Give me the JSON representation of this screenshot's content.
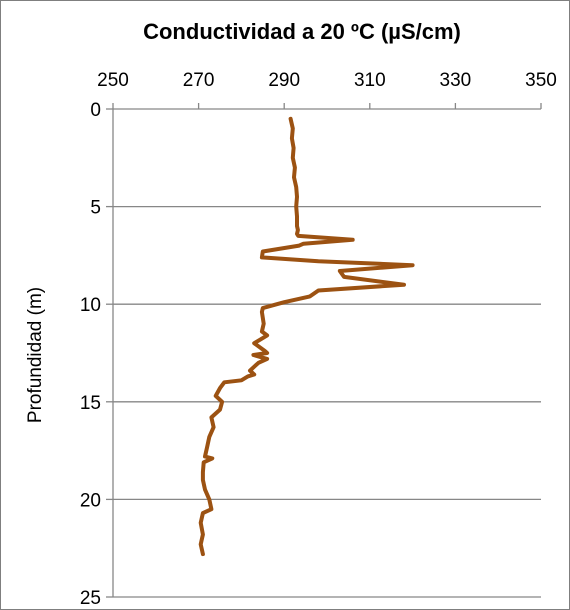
{
  "chart_data": {
    "type": "line",
    "title": "Conductividad  a  20 ºC (µS/cm)",
    "xlabel": "",
    "ylabel": "Profundidad (m)",
    "xlim": [
      250,
      350
    ],
    "ylim": [
      0,
      25
    ],
    "y_inverted": true,
    "x_axis_position": "top",
    "x_ticks": [
      "250",
      "270",
      "290",
      "310",
      "330",
      "350"
    ],
    "y_ticks": [
      "0",
      "5",
      "10",
      "15",
      "20",
      "25"
    ],
    "grid": "horizontal",
    "legend": "none",
    "series": [
      {
        "color": "#9c5212",
        "x": [
          291.5,
          292,
          291.8,
          292.2,
          292,
          292.5,
          292.3,
          292.8,
          293,
          292.8,
          293,
          293,
          293.2,
          293,
          293.3,
          306,
          294.5,
          293.5,
          285,
          284.8,
          298,
          320,
          303,
          304,
          318,
          298,
          296,
          290,
          285,
          284.8,
          285.2,
          284.8,
          286,
          284.5,
          283,
          285.5,
          286,
          282.8,
          286,
          284,
          283,
          282,
          283,
          281.5,
          280,
          276,
          275,
          274,
          275.5,
          275,
          273,
          273.5,
          272.5,
          272,
          271.5,
          273.2,
          271.2,
          271,
          271,
          271.5,
          272.5,
          273,
          271,
          270.5,
          271,
          270.5,
          271
        ],
        "y": [
          0.5,
          1.0,
          1.5,
          2.0,
          2.5,
          3.0,
          3.5,
          4.0,
          4.5,
          5.0,
          5.5,
          6.0,
          6.2,
          6.4,
          6.5,
          6.7,
          6.9,
          7.0,
          7.3,
          7.6,
          7.8,
          8.0,
          8.3,
          8.6,
          9.0,
          9.3,
          9.6,
          9.9,
          10.2,
          10.4,
          11.0,
          11.4,
          11.6,
          11.8,
          12.0,
          12.4,
          12.5,
          12.6,
          12.8,
          13.0,
          13.2,
          13.4,
          13.6,
          13.7,
          13.9,
          14.0,
          14.3,
          14.7,
          15.0,
          15.4,
          15.8,
          16.3,
          16.8,
          17.3,
          17.8,
          17.9,
          18.1,
          18.6,
          19.0,
          19.5,
          20.0,
          20.5,
          20.7,
          21.2,
          21.8,
          22.3,
          22.8
        ]
      }
    ]
  }
}
